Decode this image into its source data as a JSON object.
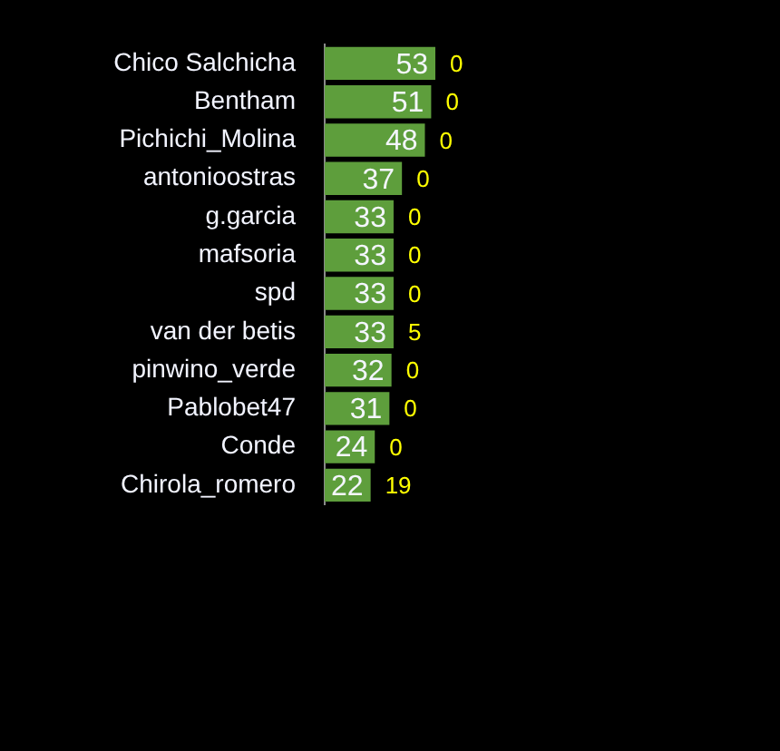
{
  "chart_data": {
    "type": "bar",
    "orientation": "horizontal",
    "categories": [
      "Chico Salchicha",
      "Bentham",
      "Pichichi_Molina",
      "antonioostras",
      "g.garcia",
      "mafsoria",
      "spd",
      "van der betis",
      "pinwino_verde",
      "Pablobet47",
      "Conde",
      "Chirola_romero"
    ],
    "values": [
      53,
      51,
      48,
      37,
      33,
      33,
      33,
      33,
      32,
      31,
      24,
      22
    ],
    "color": "#5e9e3c",
    "data_labels": true,
    "annotations": [
      {
        "text": "0",
        "x": 53,
        "y": "Chico Salchicha"
      },
      {
        "text": "0",
        "x": 51,
        "y": "Bentham"
      },
      {
        "text": "0",
        "x": 48,
        "y": "Pichichi_Molina"
      },
      {
        "text": "0",
        "x": 37,
        "y": "antonioostras"
      },
      {
        "text": "0",
        "x": 33,
        "y": "g.garcia"
      },
      {
        "text": "0",
        "x": 33,
        "y": "mafsoria"
      },
      {
        "text": "0",
        "x": 33,
        "y": "spd"
      },
      {
        "text": "5",
        "x": 33,
        "y": "van der betis"
      },
      {
        "text": "0",
        "x": 32,
        "y": "pinwino_verde"
      },
      {
        "text": "0",
        "x": 31,
        "y": "Pablobet47"
      },
      {
        "text": "0",
        "x": 24,
        "y": "Conde"
      },
      {
        "text": "19",
        "x": 22,
        "y": "Chirola_romero"
      }
    ]
  }
}
